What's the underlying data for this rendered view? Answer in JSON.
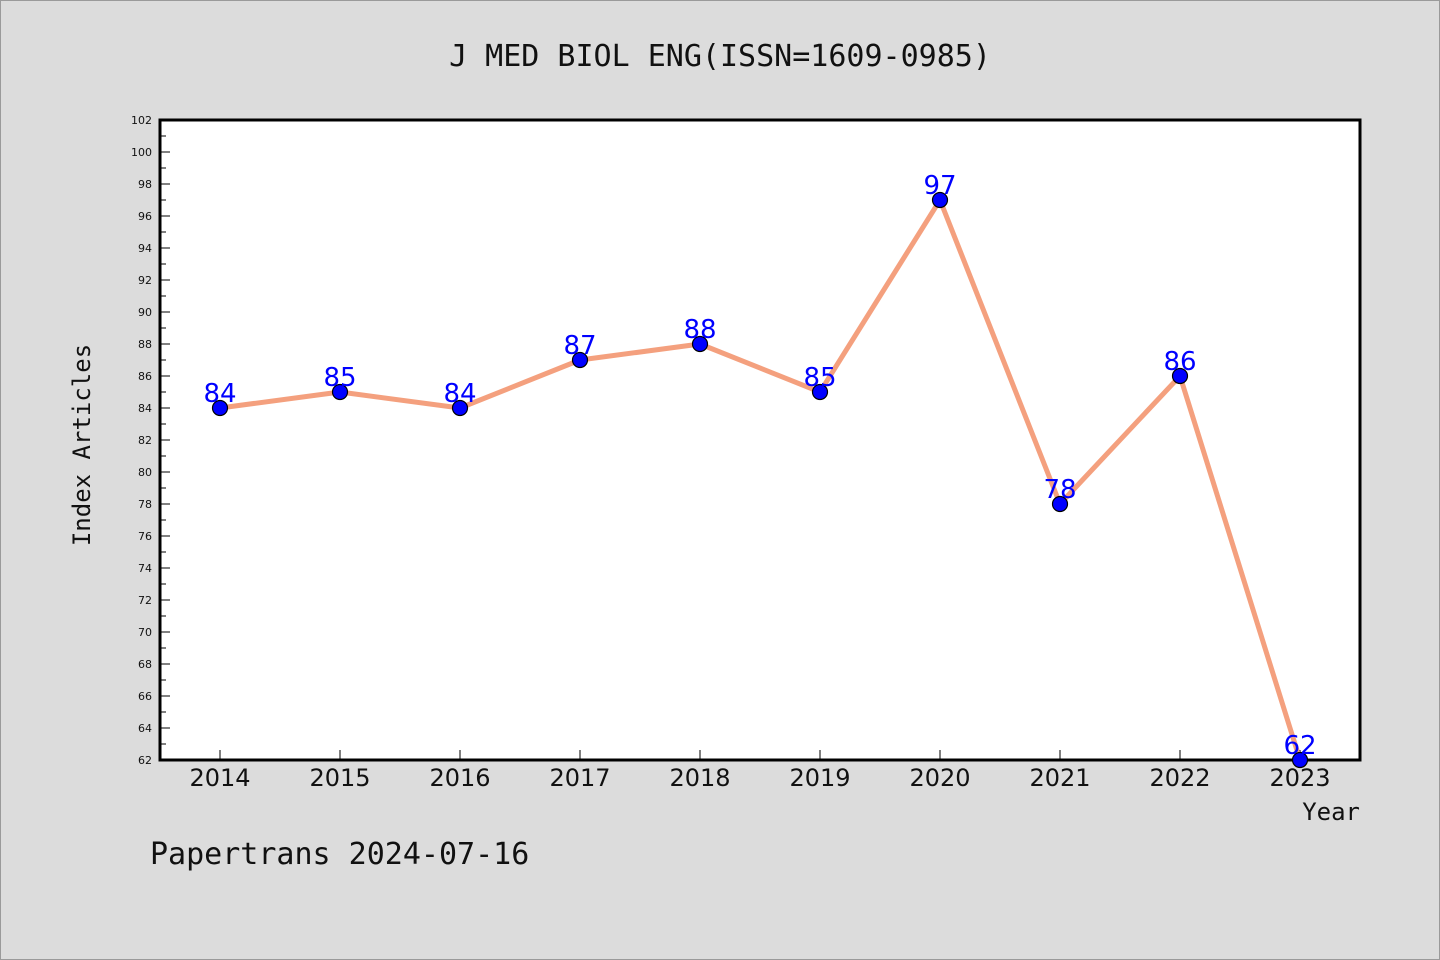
{
  "chart_data": {
    "type": "line",
    "title": "J MED BIOL ENG(ISSN=1609-0985)",
    "xlabel": "Year",
    "ylabel": "Index Articles",
    "categories": [
      "2014",
      "2015",
      "2016",
      "2017",
      "2018",
      "2019",
      "2020",
      "2021",
      "2022",
      "2023"
    ],
    "values": [
      84,
      85,
      84,
      87,
      88,
      85,
      97,
      78,
      86,
      62
    ],
    "ylim": [
      62,
      102
    ],
    "ytick_step": 2,
    "grid": false,
    "legend": "none",
    "colors": {
      "line": "#f4a07e",
      "marker": "#0000ff",
      "data_label": "#0000ff",
      "background": "#dcdcdc",
      "plot_background": "#ffffff"
    }
  },
  "footer": {
    "text": "Papertrans 2024-07-16"
  }
}
